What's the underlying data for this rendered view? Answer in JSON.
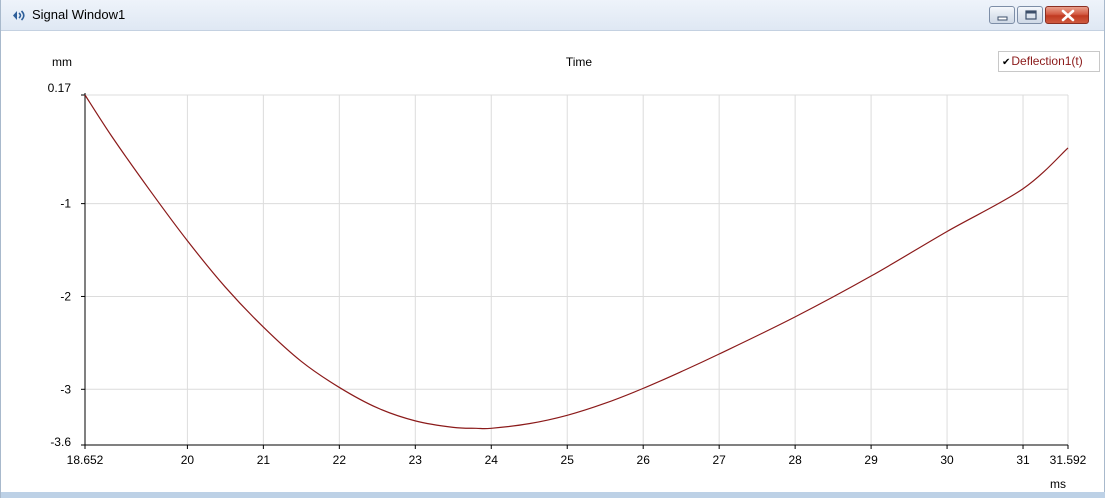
{
  "window": {
    "title": "Signal Window1",
    "icon": "signal-window-icon",
    "controls": [
      "minimize-icon",
      "maximize-icon",
      "close-icon"
    ]
  },
  "colors": {
    "series": "#8b1a1a",
    "grid": "#dcdcdc",
    "titlebar": "#dfe8f4",
    "close_button": "#c9452c"
  },
  "chart_data": {
    "type": "line",
    "title": "Time",
    "xlabel": "ms",
    "ylabel": "mm",
    "xlim": [
      18.652,
      31.592
    ],
    "ylim": [
      -3.6,
      0.17
    ],
    "x_ticks": [
      "18.652",
      "20",
      "21",
      "22",
      "23",
      "24",
      "25",
      "26",
      "27",
      "28",
      "29",
      "30",
      "31",
      "31.592"
    ],
    "y_ticks": [
      "0.17",
      "-1",
      "-2",
      "-3",
      "-3.6"
    ],
    "grid": true,
    "legend_position": "top-right",
    "series": [
      {
        "name": "Deflection1(t)",
        "checked": true,
        "color": "#8b1a1a",
        "x": [
          18.652,
          19.0,
          19.5,
          20.0,
          20.5,
          21.0,
          21.5,
          22.0,
          22.5,
          23.0,
          23.5,
          23.8,
          24.0,
          24.5,
          25.0,
          25.5,
          26.0,
          26.5,
          27.0,
          28.0,
          29.0,
          30.0,
          31.0,
          31.592
        ],
        "y": [
          0.17,
          -0.27,
          -0.85,
          -1.4,
          -1.9,
          -2.33,
          -2.7,
          -2.98,
          -3.2,
          -3.34,
          -3.41,
          -3.42,
          -3.42,
          -3.37,
          -3.28,
          -3.15,
          -2.99,
          -2.81,
          -2.62,
          -2.22,
          -1.78,
          -1.3,
          -0.84,
          -0.4
        ]
      }
    ]
  }
}
